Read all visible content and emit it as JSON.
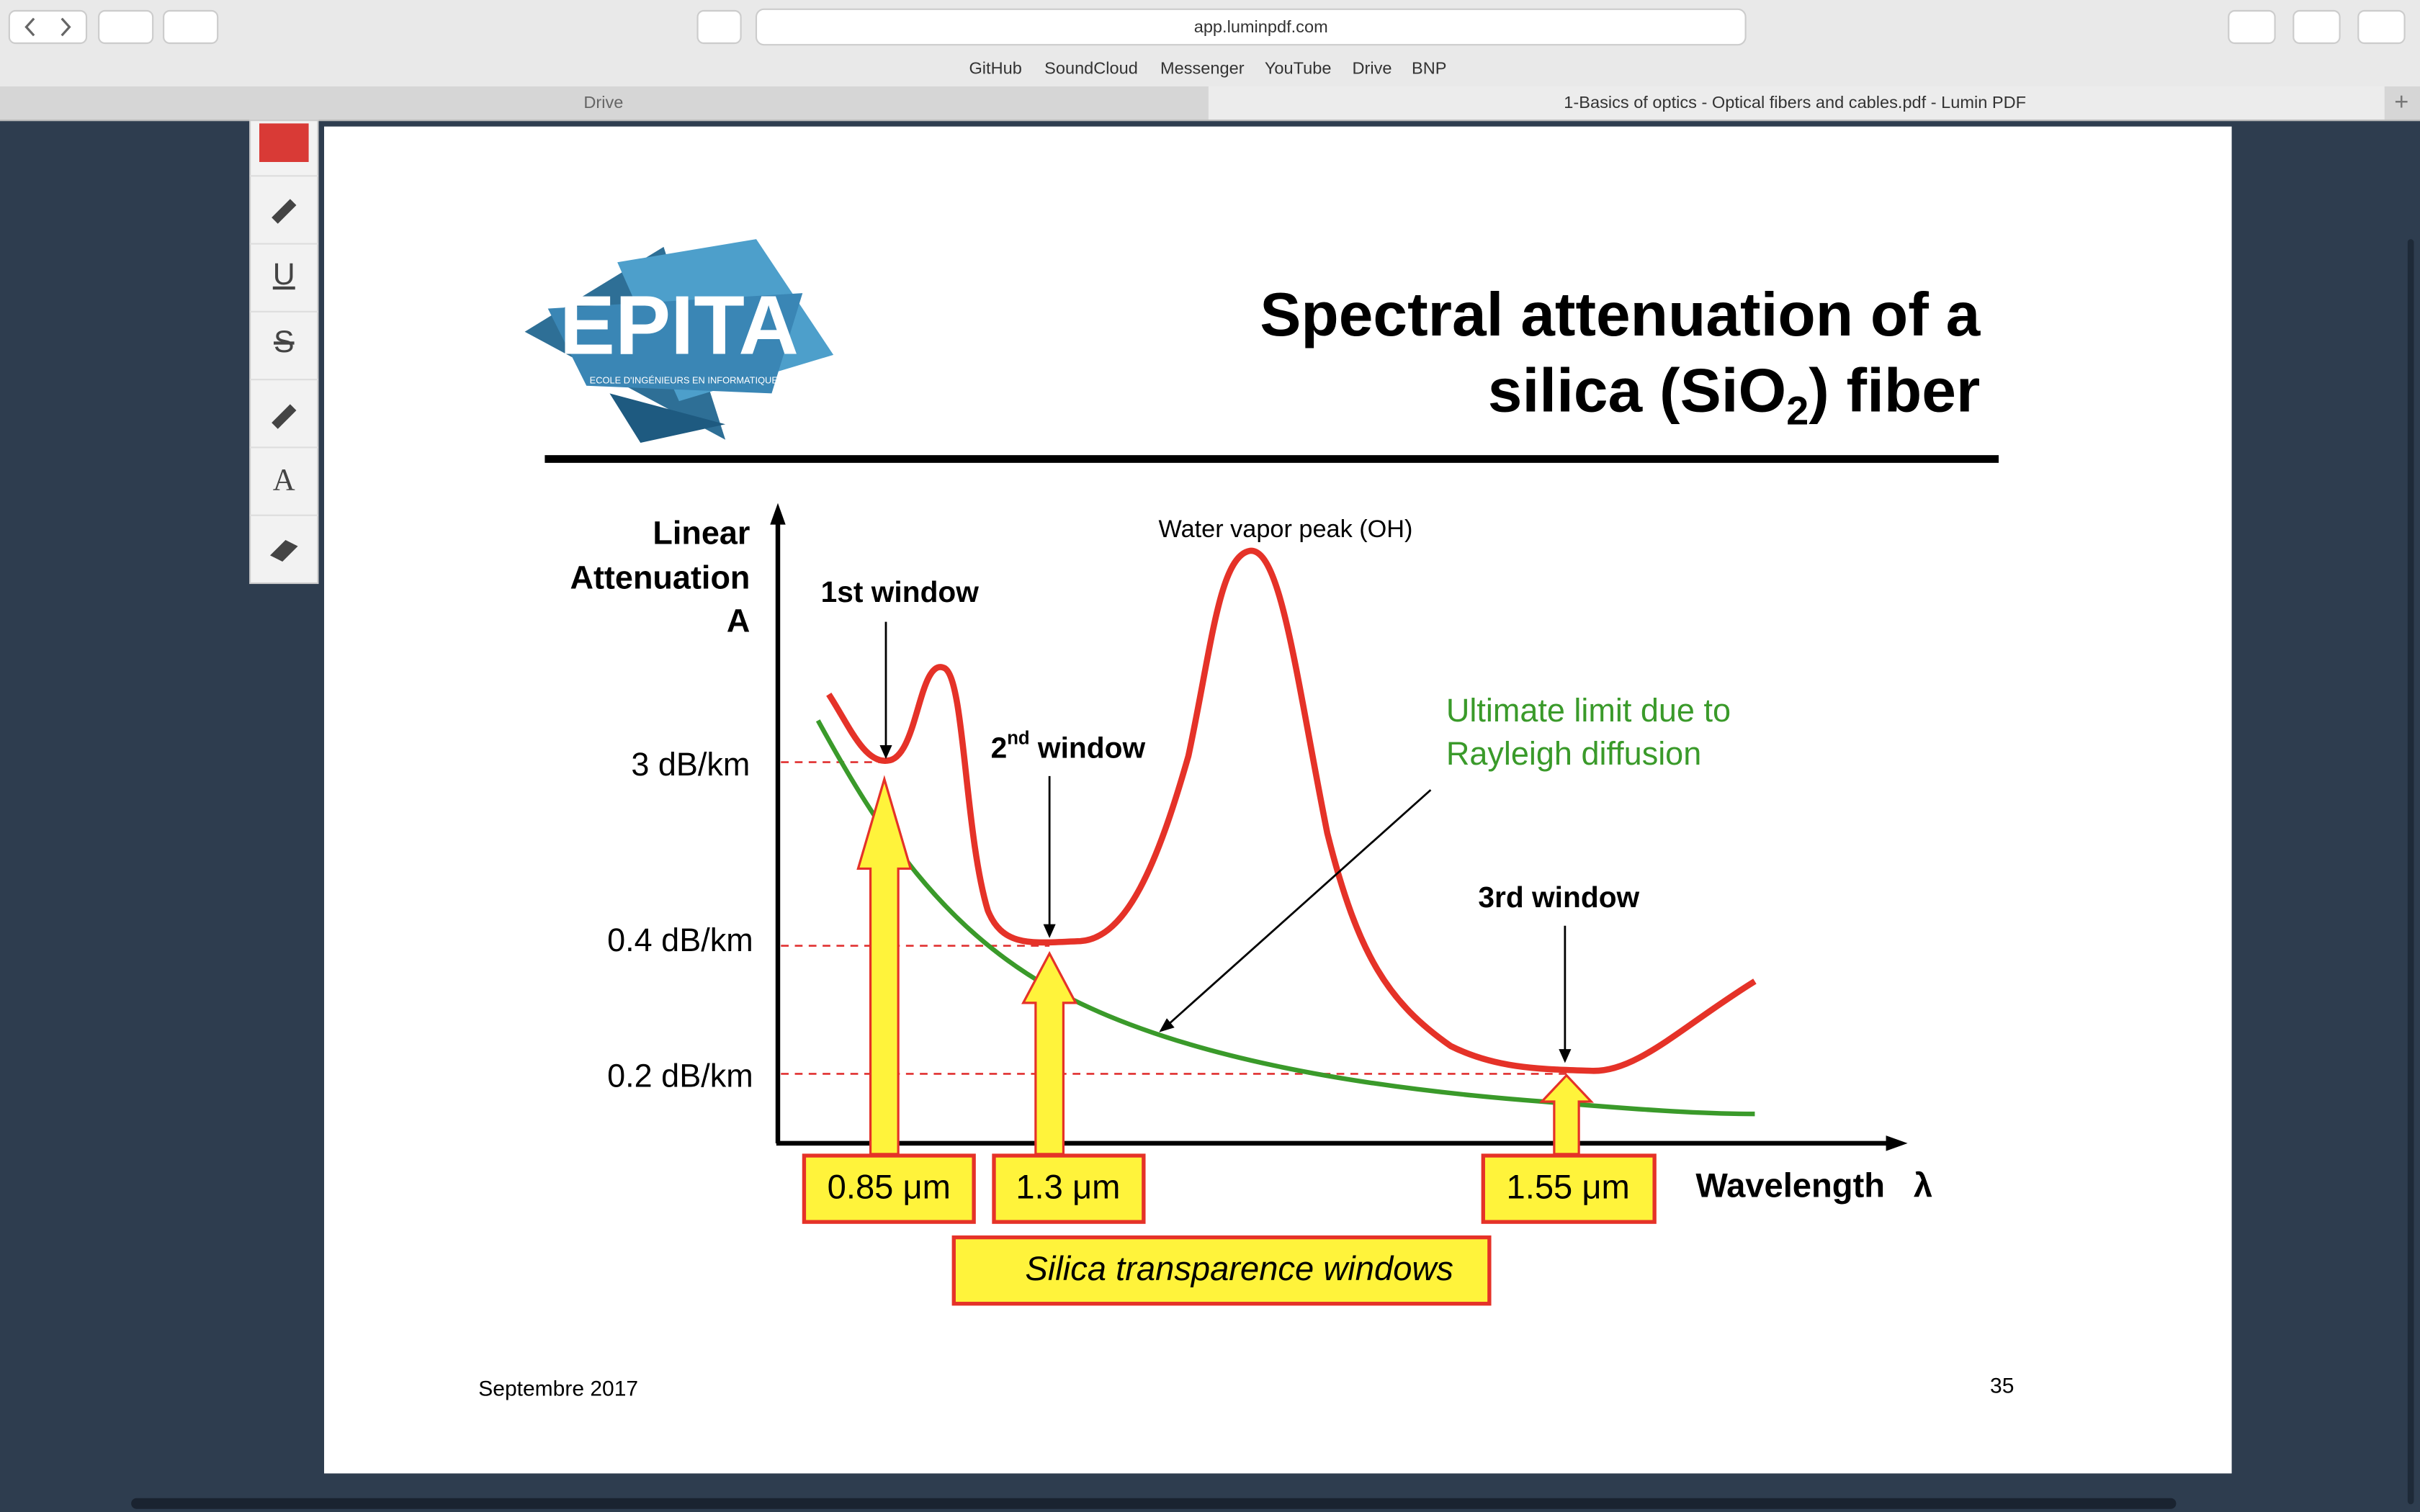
{
  "browser": {
    "url": "app.luminpdf.com",
    "bookmarks": [
      "GitHub",
      "SoundCloud",
      "Messenger",
      "YouTube",
      "Drive",
      "BNP"
    ],
    "tabs": [
      "Drive",
      "1-Basics of optics - Optical fibers and cables.pdf - Lumin PDF"
    ]
  },
  "toolbar": {
    "tools": [
      "U",
      "S",
      "A"
    ]
  },
  "slide": {
    "logo": {
      "name": "EPITA",
      "subtitle": "ECOLE D'INGÉNIEURS EN INFORMATIQUE"
    },
    "title_line1": "Spectral attenuation of a",
    "title_line2": [
      "silica (SiO",
      "2",
      ") fiber"
    ],
    "y_axis_label": [
      "Linear",
      "Attenuation",
      "A"
    ],
    "y_labels": [
      "3 dB/km",
      "0.4 dB/km",
      "0.2 dB/km"
    ],
    "x_axis_label": "Wavelength",
    "x_axis_symbol": "λ",
    "peak_label": "Water vapor peak (OH)",
    "windows": [
      {
        "label": [
          "1st window"
        ],
        "wavelength": "0.85 μm"
      },
      {
        "label": [
          "2",
          "nd",
          " window"
        ],
        "wavelength": "1.3 μm"
      },
      {
        "label": [
          "3rd window"
        ],
        "wavelength": "1.55 μm"
      }
    ],
    "rayleigh_label": [
      "Ultimate limit due to",
      "Rayleigh diffusion"
    ],
    "caption": "Silica transparence windows",
    "footer": {
      "date": "Septembre 2017",
      "page": "35"
    }
  }
}
